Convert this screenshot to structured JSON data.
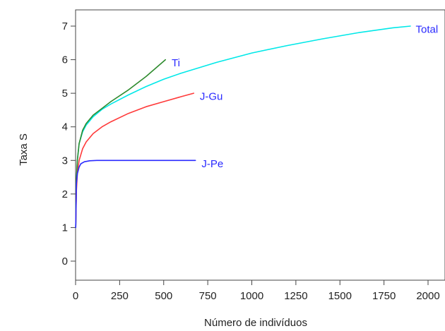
{
  "chart_data": {
    "type": "line",
    "title": "",
    "xlabel": "Número de indivíduos",
    "ylabel": "Taxa S",
    "xlim": [
      0,
      2100
    ],
    "ylim": [
      -0.6,
      7.5
    ],
    "xticks": [
      0,
      250,
      500,
      750,
      1000,
      1250,
      1500,
      1750,
      2000
    ],
    "yticks": [
      0,
      1,
      2,
      3,
      4,
      5,
      6,
      7
    ],
    "grid": false,
    "legend": "none",
    "series": [
      {
        "name": "Total",
        "color": "#00e8e8",
        "x": [
          1,
          5,
          10,
          20,
          40,
          60,
          100,
          150,
          200,
          300,
          400,
          500,
          600,
          800,
          1000,
          1200,
          1400,
          1600,
          1800,
          1900
        ],
        "y": [
          1.0,
          2.4,
          3.0,
          3.5,
          3.85,
          4.05,
          4.3,
          4.52,
          4.68,
          4.95,
          5.2,
          5.42,
          5.6,
          5.92,
          6.2,
          6.42,
          6.62,
          6.8,
          6.95,
          7.0
        ]
      },
      {
        "name": "Ti",
        "color": "#2e8b2e",
        "x": [
          1,
          5,
          10,
          20,
          40,
          60,
          100,
          150,
          200,
          300,
          400,
          510
        ],
        "y": [
          1.0,
          2.4,
          3.0,
          3.5,
          3.9,
          4.1,
          4.35,
          4.55,
          4.75,
          5.1,
          5.5,
          6.0
        ]
      },
      {
        "name": "J-Gu",
        "color": "#ff3a3a",
        "x": [
          1,
          5,
          10,
          20,
          40,
          60,
          100,
          150,
          200,
          300,
          400,
          500,
          600,
          670
        ],
        "y": [
          1.0,
          2.1,
          2.6,
          3.0,
          3.35,
          3.55,
          3.8,
          4.0,
          4.15,
          4.4,
          4.6,
          4.75,
          4.9,
          5.0
        ]
      },
      {
        "name": "J-Pe",
        "color": "#2a2aff",
        "x": [
          1,
          5,
          10,
          20,
          30,
          50,
          80,
          120,
          200,
          300,
          500,
          680
        ],
        "y": [
          1.0,
          2.3,
          2.6,
          2.8,
          2.9,
          2.96,
          2.99,
          3.0,
          3.0,
          3.0,
          3.0,
          3.0
        ]
      }
    ],
    "labels": [
      {
        "text": "Total",
        "color": "#2a2aff",
        "x": 1930,
        "y": 6.8
      },
      {
        "text": "Ti",
        "color": "#2a2aff",
        "x": 545,
        "y": 5.8
      },
      {
        "text": "J-Gu",
        "color": "#2a2aff",
        "x": 705,
        "y": 4.8
      },
      {
        "text": "J-Pe",
        "color": "#2a2aff",
        "x": 715,
        "y": 2.8
      }
    ]
  }
}
